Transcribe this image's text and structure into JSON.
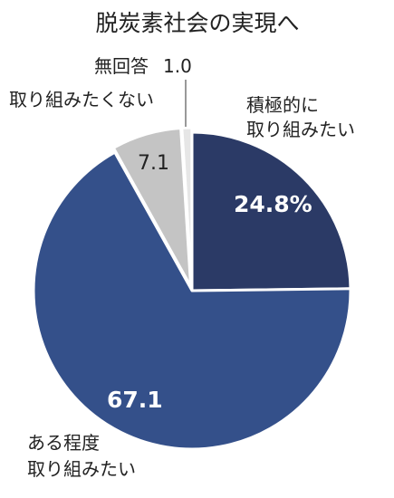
{
  "chart_data": {
    "type": "pie",
    "title": "脱炭素社会の実現へ",
    "slices": [
      {
        "label_lines": [
          "積極的に",
          "取り組みたい"
        ],
        "value": 24.8,
        "value_label": "24.8%",
        "color": "#2b3a66"
      },
      {
        "label_lines": [
          "ある程度",
          "取り組みたい"
        ],
        "value": 67.1,
        "value_label": "67.1",
        "color": "#34508a"
      },
      {
        "label_lines": [
          "取り組みたくない"
        ],
        "value": 7.1,
        "value_label": "7.1",
        "color": "#c4c4c4"
      },
      {
        "label_lines": [
          "無回答"
        ],
        "value": 1.0,
        "value_label": "1.0",
        "color": "#e6e6e6"
      }
    ]
  }
}
